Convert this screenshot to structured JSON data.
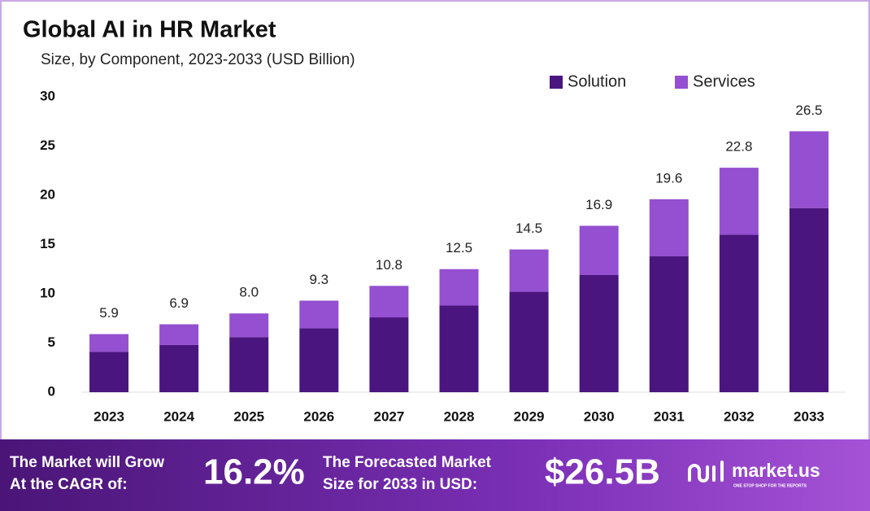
{
  "chart_data": {
    "type": "stacked_bar",
    "title": "Global AI in HR Market",
    "subtitle": "Size, by Component, 2023-2033 (USD Billion)",
    "categories": [
      "2023",
      "2024",
      "2025",
      "2026",
      "2027",
      "2028",
      "2029",
      "2030",
      "2031",
      "2032",
      "2033"
    ],
    "series": [
      {
        "name": "Solution",
        "color": "#4b1580",
        "values": [
          4.1,
          4.8,
          5.6,
          6.5,
          7.6,
          8.8,
          10.2,
          11.9,
          13.8,
          16.0,
          18.7
        ]
      },
      {
        "name": "Services",
        "color": "#9450d0",
        "values": [
          1.8,
          2.1,
          2.4,
          2.8,
          3.2,
          3.7,
          4.3,
          5.0,
          5.8,
          6.8,
          7.8
        ]
      }
    ],
    "totals": {
      "values": [
        5.9,
        6.9,
        8,
        9.3,
        10.8,
        12.5,
        14.5,
        16.9,
        19.6,
        22.8,
        26.5
      ],
      "value_labels": [
        "5.9",
        "6.9",
        "8.0",
        "9.3",
        "10.8",
        "12.5",
        "14.5",
        "16.9",
        "19.6",
        "22.8",
        "26.5"
      ]
    },
    "ylim": [
      0,
      30
    ],
    "yticks": [
      0,
      5,
      10,
      15,
      20,
      25,
      30
    ],
    "grid": false,
    "legend": "top-right"
  },
  "footer": {
    "cagr_text": [
      "The Market will Grow",
      "At the CAGR of:"
    ],
    "cagr": "16.2%",
    "forecast_text": [
      "The Forecasted Market",
      "Size for 2033 in USD:"
    ],
    "forecast": "$26.5B",
    "brand": "market.us",
    "tagline": "ONE STOP SHOP FOR THE REPORTS"
  }
}
